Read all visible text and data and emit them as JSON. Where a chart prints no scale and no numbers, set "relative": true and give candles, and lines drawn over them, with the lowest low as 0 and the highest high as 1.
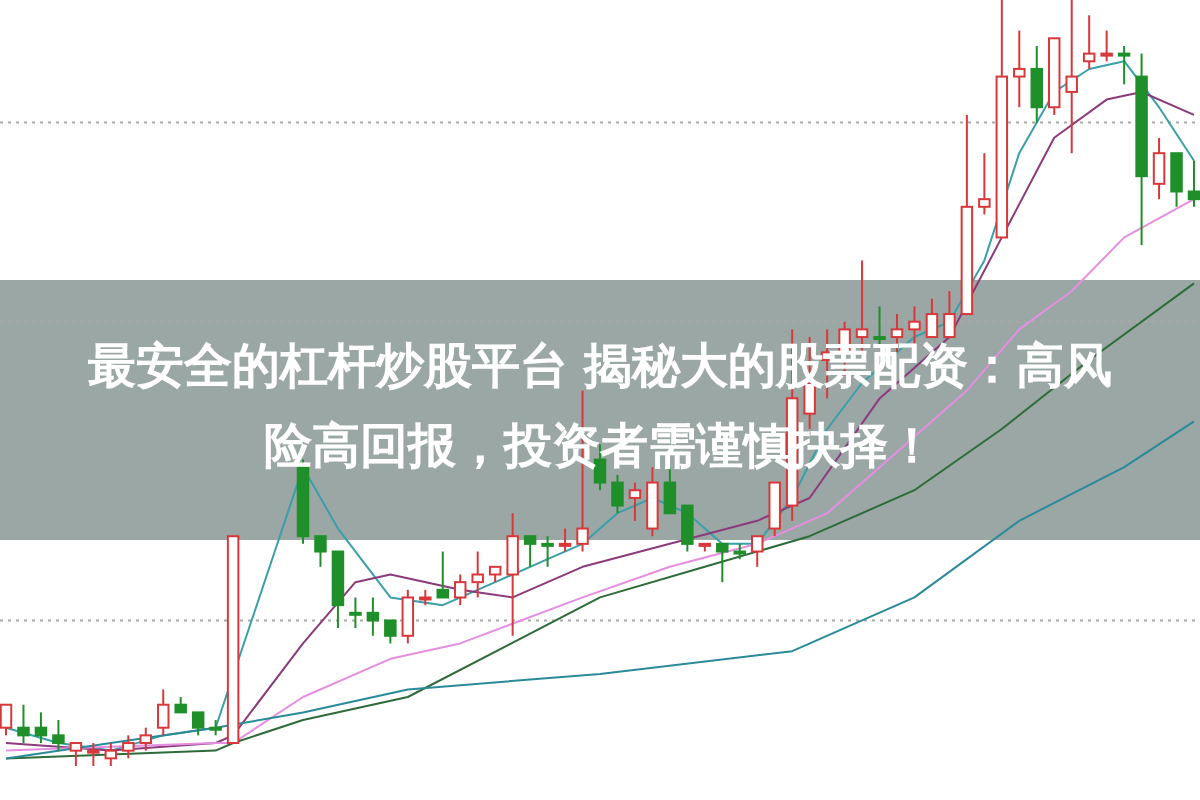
{
  "chart_data": {
    "type": "candlestick",
    "title": "最安全的杠杆炒股平台 揭秘大的股票配资：高风险高回报，投资者需谨慎抉择！",
    "relative": true,
    "categories": [
      null,
      null,
      null,
      null,
      null,
      null,
      null,
      null,
      null,
      null,
      null,
      null,
      null,
      null,
      null,
      null,
      null,
      null,
      null,
      null,
      null,
      null,
      null,
      null,
      null,
      null,
      null,
      null,
      null,
      null,
      null,
      null,
      null,
      null,
      null,
      null,
      null,
      null,
      null,
      null,
      null,
      null,
      null,
      null,
      null,
      null,
      null,
      null,
      null,
      null,
      null,
      null,
      null,
      null,
      null,
      null,
      null,
      null,
      null,
      null,
      null,
      null,
      null,
      null,
      null,
      null,
      null,
      null,
      null
    ],
    "ohlc": [
      [
        0.05,
        0.08,
        0.04,
        0.08
      ],
      [
        0.05,
        0.08,
        0.03,
        0.04
      ],
      [
        0.05,
        0.07,
        0.03,
        0.04
      ],
      [
        0.04,
        0.06,
        0.02,
        0.03
      ],
      [
        0.02,
        0.03,
        0.0,
        0.03
      ],
      [
        0.02,
        0.03,
        0.0,
        0.02
      ],
      [
        0.01,
        0.03,
        0.0,
        0.02
      ],
      [
        0.02,
        0.04,
        0.01,
        0.03
      ],
      [
        0.03,
        0.05,
        0.02,
        0.04
      ],
      [
        0.05,
        0.1,
        0.04,
        0.08
      ],
      [
        0.08,
        0.09,
        0.07,
        0.07
      ],
      [
        0.07,
        0.07,
        0.04,
        0.05
      ],
      [
        0.05,
        0.06,
        0.04,
        0.05
      ],
      [
        0.03,
        0.3,
        0.03,
        0.3
      ],
      null,
      null,
      null,
      [
        0.39,
        0.4,
        0.29,
        0.3
      ],
      [
        0.3,
        0.3,
        0.26,
        0.28
      ],
      [
        0.28,
        0.28,
        0.18,
        0.21
      ],
      [
        0.2,
        0.22,
        0.18,
        0.2
      ],
      [
        0.2,
        0.22,
        0.17,
        0.19
      ],
      [
        0.19,
        0.19,
        0.16,
        0.17
      ],
      [
        0.17,
        0.23,
        0.16,
        0.22
      ],
      [
        0.22,
        0.23,
        0.21,
        0.22
      ],
      [
        0.23,
        0.28,
        0.22,
        0.22
      ],
      [
        0.22,
        0.25,
        0.21,
        0.24
      ],
      [
        0.24,
        0.28,
        0.22,
        0.25
      ],
      [
        0.25,
        0.26,
        0.24,
        0.26
      ],
      [
        0.25,
        0.33,
        0.17,
        0.3
      ],
      [
        0.3,
        0.3,
        0.26,
        0.29
      ],
      [
        0.29,
        0.3,
        0.26,
        0.29
      ],
      [
        0.29,
        0.31,
        0.28,
        0.29
      ],
      [
        0.29,
        0.49,
        0.28,
        0.31
      ],
      [
        0.4,
        0.42,
        0.36,
        0.37
      ],
      [
        0.37,
        0.38,
        0.33,
        0.34
      ],
      [
        0.35,
        0.37,
        0.32,
        0.36
      ],
      [
        0.31,
        0.39,
        0.3,
        0.37
      ],
      [
        0.37,
        0.39,
        0.33,
        0.33
      ],
      [
        0.34,
        0.34,
        0.28,
        0.29
      ],
      [
        0.29,
        0.29,
        0.28,
        0.29
      ],
      [
        0.29,
        0.29,
        0.24,
        0.28
      ],
      [
        0.28,
        0.29,
        0.27,
        0.28
      ],
      [
        0.28,
        0.3,
        0.26,
        0.3
      ],
      [
        0.31,
        0.37,
        0.3,
        0.37
      ],
      [
        0.34,
        0.57,
        0.32,
        0.48
      ],
      [
        0.46,
        0.56,
        0.44,
        0.5
      ],
      [
        0.53,
        0.57,
        0.48,
        0.54
      ],
      [
        0.54,
        0.58,
        0.51,
        0.57
      ],
      [
        0.56,
        0.66,
        0.54,
        0.57
      ],
      [
        0.56,
        0.6,
        0.55,
        0.56
      ],
      [
        0.56,
        0.59,
        0.54,
        0.57
      ],
      [
        0.57,
        0.6,
        0.55,
        0.58
      ],
      [
        0.56,
        0.61,
        0.56,
        0.59
      ],
      [
        0.56,
        0.62,
        0.56,
        0.59
      ],
      [
        0.59,
        0.85,
        0.59,
        0.73
      ],
      [
        0.73,
        0.8,
        0.72,
        0.74
      ],
      [
        0.69,
        1.0,
        0.69,
        0.9
      ],
      [
        0.9,
        0.96,
        0.86,
        0.91
      ],
      [
        0.91,
        0.94,
        0.84,
        0.86
      ],
      [
        0.86,
        0.95,
        0.85,
        0.95
      ],
      [
        0.88,
        1.0,
        0.8,
        0.9
      ],
      [
        0.92,
        0.98,
        0.91,
        0.93
      ],
      [
        0.93,
        0.96,
        0.92,
        0.93
      ],
      [
        0.93,
        0.94,
        0.89,
        0.93
      ],
      [
        0.9,
        0.93,
        0.68,
        0.77
      ],
      [
        0.76,
        0.82,
        0.74,
        0.8
      ],
      [
        0.8,
        0.8,
        0.73,
        0.75
      ],
      [
        0.75,
        0.79,
        0.73,
        0.74
      ]
    ],
    "colors": [
      "#d9383a",
      "#1f8f2a",
      "#1f8f2a",
      "#1f8f2a",
      "#d9383a",
      "#d9383a",
      "#d9383a",
      "#d9383a",
      "#d9383a",
      "#d9383a",
      "#1f8f2a",
      "#1f8f2a",
      "#1f8f2a",
      "#d9383a",
      null,
      null,
      null,
      "#1f8f2a",
      "#1f8f2a",
      "#1f8f2a",
      "#1f8f2a",
      "#1f8f2a",
      "#1f8f2a",
      "#d9383a",
      "#d9383a",
      "#1f8f2a",
      "#d9383a",
      "#d9383a",
      "#d9383a",
      "#d9383a",
      "#1f8f2a",
      "#1f8f2a",
      "#d9383a",
      "#d9383a",
      "#1f8f2a",
      "#1f8f2a",
      "#d9383a",
      "#d9383a",
      "#1f8f2a",
      "#1f8f2a",
      "#d9383a",
      "#1f8f2a",
      "#1f8f2a",
      "#d9383a",
      "#d9383a",
      "#d9383a",
      "#d9383a",
      "#d9383a",
      "#d9383a",
      "#d9383a",
      "#1f8f2a",
      "#d9383a",
      "#d9383a",
      "#d9383a",
      "#d9383a",
      "#d9383a",
      "#d9383a",
      "#d9383a",
      "#d9383a",
      "#1f8f2a",
      "#d9383a",
      "#d9383a",
      "#d9383a",
      "#d9383a",
      "#1f8f2a",
      "#1f8f2a",
      "#d9383a",
      "#1f8f2a",
      "#1f8f2a"
    ],
    "series": [
      {
        "type": "line",
        "color": "#3a9fa8",
        "values": [
          0.05,
          null,
          null,
          0.03,
          null,
          null,
          0.02,
          null,
          null,
          0.04,
          null,
          null,
          0.05,
          null,
          null,
          null,
          null,
          0.39,
          null,
          0.31,
          null,
          null,
          0.22,
          null,
          null,
          0.21,
          null,
          null,
          0.24,
          null,
          null,
          0.27,
          null,
          0.29,
          null,
          0.33,
          null,
          0.35,
          null,
          0.33,
          null,
          0.29,
          null,
          0.29,
          null,
          0.35,
          null,
          0.44,
          null,
          0.5,
          null,
          null,
          0.56,
          null,
          0.58,
          null,
          0.66,
          null,
          0.8,
          null,
          0.88,
          null,
          0.91,
          null,
          0.92,
          null,
          0.86,
          null,
          0.79
        ]
      },
      {
        "type": "line",
        "color": "#8b3a7a",
        "values": [
          0.03,
          null,
          null,
          null,
          null,
          null,
          0.02,
          null,
          null,
          null,
          null,
          null,
          0.03,
          0.04,
          null,
          null,
          null,
          0.16,
          null,
          null,
          0.24,
          null,
          0.25,
          null,
          null,
          null,
          0.23,
          null,
          null,
          0.22,
          null,
          null,
          null,
          0.26,
          null,
          null,
          null,
          null,
          0.29,
          null,
          null,
          null,
          null,
          0.32,
          null,
          null,
          0.35,
          null,
          null,
          null,
          0.48,
          null,
          null,
          null,
          0.56,
          null,
          null,
          0.69,
          null,
          null,
          0.82,
          null,
          null,
          0.87,
          null,
          0.88,
          null,
          null,
          0.85
        ]
      },
      {
        "type": "line",
        "color": "#e58fe0",
        "values": [
          0.02,
          null,
          null,
          null,
          null,
          null,
          null,
          null,
          null,
          null,
          null,
          null,
          0.03,
          0.03,
          null,
          null,
          null,
          0.09,
          null,
          null,
          null,
          null,
          0.14,
          null,
          null,
          null,
          0.16,
          null,
          null,
          null,
          null,
          null,
          null,
          0.22,
          null,
          null,
          null,
          null,
          0.26,
          null,
          null,
          null,
          null,
          0.29,
          null,
          null,
          null,
          0.33,
          null,
          null,
          null,
          0.41,
          null,
          null,
          null,
          0.49,
          null,
          null,
          0.57,
          null,
          null,
          0.62,
          null,
          null,
          0.69,
          null,
          null,
          null,
          0.74
        ]
      },
      {
        "type": "line",
        "color": "#2e6b3a",
        "values": [
          0.01,
          null,
          null,
          null,
          null,
          null,
          null,
          null,
          null,
          null,
          null,
          null,
          0.02,
          0.03,
          null,
          null,
          null,
          0.06,
          null,
          null,
          null,
          null,
          null,
          0.09,
          null,
          null,
          null,
          null,
          null,
          null,
          null,
          null,
          null,
          null,
          0.22,
          null,
          null,
          null,
          null,
          null,
          0.26,
          null,
          null,
          null,
          null,
          null,
          0.3,
          null,
          null,
          null,
          null,
          null,
          0.36,
          null,
          null,
          null,
          null,
          0.44,
          null,
          null,
          null,
          null,
          0.53,
          null,
          null,
          null,
          null,
          null,
          0.63
        ]
      },
      {
        "type": "line",
        "color": "#2a8a9a",
        "values": [
          0.01,
          null,
          null,
          null,
          null,
          null,
          0.03,
          null,
          null,
          null,
          null,
          null,
          0.05,
          null,
          null,
          null,
          null,
          0.07,
          null,
          null,
          null,
          null,
          null,
          0.1,
          null,
          null,
          null,
          null,
          null,
          null,
          null,
          null,
          null,
          null,
          0.12,
          null,
          null,
          null,
          null,
          null,
          null,
          null,
          null,
          null,
          null,
          0.15,
          null,
          null,
          null,
          null,
          null,
          null,
          0.22,
          null,
          null,
          null,
          null,
          null,
          0.32,
          null,
          null,
          null,
          null,
          null,
          0.39,
          null,
          null,
          null,
          0.45
        ]
      }
    ],
    "ref_lines": [
      {
        "axis": "y",
        "value": 0.84,
        "color": "#aaaaaa",
        "line_style": "dotted"
      },
      {
        "axis": "y",
        "value": 0.58,
        "color": "#aaaaaa",
        "line_style": "dotted"
      },
      {
        "axis": "y",
        "value": 0.19,
        "color": "#aaaaaa",
        "line_style": "dotted"
      }
    ]
  }
}
